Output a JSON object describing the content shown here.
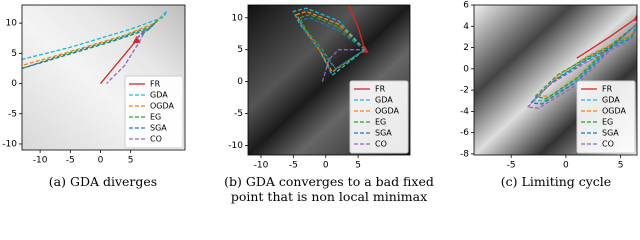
{
  "chart_data": [
    {
      "type": "line",
      "caption_label": "(a)",
      "caption": [
        "GDA diverges"
      ],
      "xlim": [
        -13,
        14
      ],
      "ylim": [
        -11,
        13
      ],
      "xticks": [
        -10,
        -5,
        0,
        5
      ],
      "yticks": [
        -10,
        -5,
        0,
        5,
        10
      ],
      "series": [
        {
          "name": "FR",
          "color": "#d62728",
          "linestyle": "solid",
          "x": [
            0,
            3,
            6
          ],
          "values": [
            0,
            3.6,
            7.2
          ]
        },
        {
          "name": "GDA",
          "color": "#17becf",
          "linestyle": "dashed",
          "x": [
            6,
            9,
            11,
            10.5,
            5,
            -5,
            -13
          ],
          "values": [
            7.5,
            10,
            12,
            11,
            9,
            6,
            4
          ]
        },
        {
          "name": "OGDA",
          "color": "#ff7f0e",
          "linestyle": "dashed",
          "x": [
            6,
            8.5,
            10,
            9,
            4,
            -6,
            -13
          ],
          "values": [
            7.5,
            9.5,
            11,
            10,
            8,
            5,
            3
          ]
        },
        {
          "name": "EG",
          "color": "#2ca02c",
          "linestyle": "dashed",
          "x": [
            6,
            8,
            9.5,
            8.5,
            3,
            -7,
            -13
          ],
          "values": [
            7.5,
            9,
            10.5,
            9.5,
            7.5,
            4.5,
            2.5
          ]
        },
        {
          "name": "SGA",
          "color": "#1f77b4",
          "linestyle": "dashed",
          "x": [
            6,
            8,
            9,
            8,
            2,
            -8,
            -13
          ],
          "values": [
            7.5,
            9,
            10,
            9,
            7,
            4,
            2.5
          ]
        },
        {
          "name": "CO",
          "color": "#9467bd",
          "linestyle": "dashed",
          "x": [
            6,
            7.5,
            6.5,
            4,
            1
          ],
          "values": [
            7.5,
            9,
            7,
            3,
            0
          ]
        }
      ]
    },
    {
      "type": "line",
      "caption_label": "(b)",
      "caption": [
        "GDA converges to a bad fixed",
        "point that is non local minimax"
      ],
      "xlim": [
        -12,
        13
      ],
      "ylim": [
        -11.5,
        12
      ],
      "xticks": [
        -10,
        -5,
        0,
        5
      ],
      "yticks": [
        -10,
        -5,
        0,
        5,
        10
      ],
      "series": [
        {
          "name": "FR",
          "color": "#d62728",
          "linestyle": "solid",
          "x": [
            3.5,
            5,
            6
          ],
          "values": [
            12,
            8.5,
            5
          ]
        },
        {
          "name": "GDA",
          "color": "#17becf",
          "linestyle": "dashed",
          "x": [
            6,
            2,
            -3,
            -5,
            -4,
            -1,
            1,
            6
          ],
          "values": [
            5,
            9.5,
            11.5,
            11,
            9,
            5,
            1,
            5
          ]
        },
        {
          "name": "OGDA",
          "color": "#ff7f0e",
          "linestyle": "dashed",
          "x": [
            6,
            2,
            -3,
            -4.5,
            -3.5,
            -1,
            1,
            6
          ],
          "values": [
            5,
            9,
            11,
            10.5,
            8.5,
            5,
            1.5,
            5
          ]
        },
        {
          "name": "EG",
          "color": "#2ca02c",
          "linestyle": "dashed",
          "x": [
            6,
            2,
            -2.5,
            -4,
            -3,
            -0.5,
            1.5,
            6
          ],
          "values": [
            5,
            8.5,
            10.5,
            10,
            8,
            5,
            2,
            5
          ]
        },
        {
          "name": "SGA",
          "color": "#1f77b4",
          "linestyle": "dashed",
          "x": [
            6,
            2,
            -2.5,
            -4,
            -3,
            -0.5,
            1.5,
            6
          ],
          "values": [
            5,
            8,
            10,
            9.5,
            7.5,
            4.5,
            2,
            5
          ]
        },
        {
          "name": "CO",
          "color": "#9467bd",
          "linestyle": "dashed",
          "x": [
            -0.5,
            0.5,
            2,
            6
          ],
          "values": [
            0,
            3.5,
            5,
            5
          ]
        }
      ]
    },
    {
      "type": "line",
      "caption_label": "(c)",
      "caption": [
        "Limiting cycle"
      ],
      "xlim": [
        -8.4,
        6.5
      ],
      "ylim": [
        -8.1,
        6
      ],
      "xticks": [
        -5,
        0,
        5
      ],
      "yticks": [
        -8,
        -6,
        -4,
        -2,
        0,
        2,
        4,
        6
      ],
      "series": [
        {
          "name": "FR",
          "color": "#d62728",
          "linestyle": "solid",
          "x": [
            1,
            4,
            6.5
          ],
          "values": [
            1,
            3,
            4.8
          ]
        },
        {
          "name": "GDA",
          "color": "#17becf",
          "linestyle": "dashed",
          "x": [
            -3,
            -1,
            2,
            4,
            6,
            6.8,
            4,
            1,
            -2,
            -3
          ],
          "values": [
            -3,
            -1,
            1,
            2,
            3,
            4.5,
            2,
            -1,
            -3,
            -3
          ]
        },
        {
          "name": "OGDA",
          "color": "#ff7f0e",
          "linestyle": "dashed",
          "x": [
            -2.5,
            -0.5,
            2,
            4,
            6,
            6.5,
            4,
            1,
            -1.5,
            -2.5
          ],
          "values": [
            -2.5,
            -0.5,
            1.2,
            2.2,
            3.2,
            4.2,
            2.2,
            -0.8,
            -2.6,
            -2.5
          ]
        },
        {
          "name": "EG",
          "color": "#2ca02c",
          "linestyle": "dashed",
          "x": [
            -2.8,
            -0.8,
            2,
            4,
            6,
            6.6,
            4,
            1,
            -1.8,
            -2.8
          ],
          "values": [
            -2.6,
            -0.6,
            1.1,
            2.1,
            3.1,
            4.3,
            2.1,
            -0.9,
            -2.8,
            -2.6
          ]
        },
        {
          "name": "SGA",
          "color": "#1f77b4",
          "linestyle": "dashed",
          "x": [
            -3.2,
            -1.2,
            2,
            4,
            6,
            6.7,
            4,
            1,
            -2.2,
            -3.2
          ],
          "values": [
            -3.2,
            -1.2,
            0.9,
            1.9,
            2.9,
            4.4,
            1.9,
            -1.2,
            -3.3,
            -3.2
          ]
        },
        {
          "name": "CO",
          "color": "#9467bd",
          "linestyle": "dashed",
          "x": [
            -3.5,
            -1.5,
            2,
            4,
            6,
            6.8,
            4,
            1,
            -2.5,
            -3.5
          ],
          "values": [
            -3.6,
            -1.5,
            0.7,
            1.7,
            2.7,
            4.6,
            1.7,
            -1.5,
            -3.7,
            -3.6
          ]
        }
      ]
    }
  ]
}
